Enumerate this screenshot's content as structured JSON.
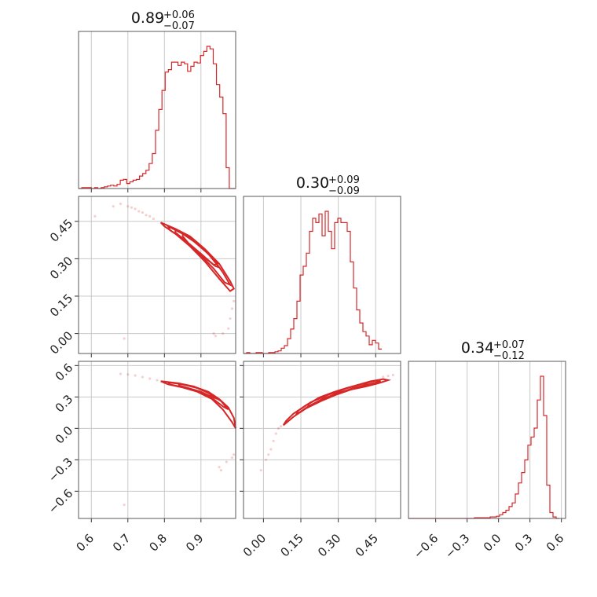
{
  "chart_data": {
    "type": "corner",
    "color": "#d62728",
    "params": [
      {
        "id": "p0",
        "title": {
          "median": "0.89",
          "plus": "+0.06",
          "minus": "−0.07"
        },
        "range": [
          0.565,
          0.995
        ],
        "ticks": [
          0.6,
          0.7,
          0.8,
          0.9
        ],
        "tick_labels": [
          "0.6",
          "0.7",
          "0.8",
          "0.9"
        ],
        "hist": {
          "edges_start": 0.565,
          "bin_width": 0.00878,
          "counts": [
            0,
            1,
            1,
            1,
            0,
            1,
            0,
            1,
            2,
            3,
            4,
            3,
            5,
            10,
            11,
            6,
            8,
            10,
            11,
            15,
            18,
            22,
            30,
            42,
            70,
            95,
            118,
            140,
            143,
            152,
            152,
            148,
            152,
            150,
            141,
            147,
            152,
            151,
            160,
            165,
            171,
            168,
            150,
            125,
            110,
            90,
            25,
            0,
            0
          ]
        }
      },
      {
        "id": "p1",
        "title": {
          "median": "0.30",
          "plus": "+0.09",
          "minus": "−0.09"
        },
        "range": [
          -0.08,
          0.55
        ],
        "ticks": [
          0.0,
          0.15,
          0.3,
          0.45
        ],
        "tick_labels": [
          "0.00",
          "0.15",
          "0.30",
          "0.45"
        ],
        "hist": {
          "edges_start": -0.08,
          "bin_width": 0.0126,
          "counts": [
            0,
            1,
            0,
            0,
            1,
            1,
            0,
            0,
            1,
            1,
            2,
            3,
            6,
            9,
            17,
            28,
            40,
            60,
            90,
            100,
            115,
            140,
            155,
            150,
            160,
            135,
            163,
            140,
            120,
            150,
            155,
            150,
            150,
            140,
            105,
            75,
            50,
            35,
            25,
            20,
            10,
            15,
            12,
            5
          ]
        }
      },
      {
        "id": "p2",
        "title": {
          "median": "0.34",
          "plus": "+0.07",
          "minus": "−0.12"
        },
        "range": [
          -0.86,
          0.64
        ],
        "ticks": [
          -0.6,
          -0.3,
          0.0,
          0.3,
          0.6
        ],
        "tick_labels": [
          "−0.6",
          "−0.3",
          "0.0",
          "0.3",
          "0.6"
        ],
        "hist": {
          "edges_start": -0.86,
          "bin_width": 0.03,
          "counts": [
            0,
            0,
            0,
            0,
            0,
            0,
            0,
            0,
            0,
            0,
            0,
            0,
            0,
            0,
            0,
            0,
            0,
            0,
            0,
            0,
            0,
            1,
            1,
            1,
            1,
            1,
            2,
            2,
            3,
            5,
            8,
            11,
            16,
            21,
            33,
            48,
            62,
            79,
            99,
            110,
            122,
            160,
            192,
            139,
            45,
            8,
            2,
            0
          ]
        }
      }
    ],
    "pairs": [
      {
        "x": "p0",
        "y": "p1",
        "contours": [
          [
            [
              0.79,
              0.445
            ],
            [
              0.83,
              0.42
            ],
            [
              0.87,
              0.39
            ],
            [
              0.91,
              0.34
            ],
            [
              0.95,
              0.28
            ],
            [
              0.98,
              0.21
            ],
            [
              0.99,
              0.18
            ],
            [
              0.98,
              0.17
            ],
            [
              0.95,
              0.22
            ],
            [
              0.91,
              0.29
            ],
            [
              0.87,
              0.35
            ],
            [
              0.83,
              0.4
            ],
            [
              0.8,
              0.43
            ],
            [
              0.79,
              0.445
            ]
          ],
          [
            [
              0.81,
              0.43
            ],
            [
              0.85,
              0.4
            ],
            [
              0.89,
              0.36
            ],
            [
              0.93,
              0.305
            ],
            [
              0.96,
              0.245
            ],
            [
              0.98,
              0.195
            ],
            [
              0.965,
              0.205
            ],
            [
              0.935,
              0.26
            ],
            [
              0.895,
              0.32
            ],
            [
              0.855,
              0.375
            ],
            [
              0.815,
              0.415
            ],
            [
              0.81,
              0.43
            ]
          ],
          [
            [
              0.83,
              0.415
            ],
            [
              0.87,
              0.385
            ],
            [
              0.91,
              0.335
            ],
            [
              0.945,
              0.28
            ],
            [
              0.935,
              0.275
            ],
            [
              0.9,
              0.32
            ],
            [
              0.86,
              0.37
            ],
            [
              0.83,
              0.405
            ],
            [
              0.83,
              0.415
            ]
          ],
          [
            [
              0.85,
              0.4
            ],
            [
              0.88,
              0.37
            ],
            [
              0.92,
              0.32
            ],
            [
              0.95,
              0.265
            ],
            [
              0.94,
              0.27
            ],
            [
              0.905,
              0.31
            ],
            [
              0.87,
              0.355
            ],
            [
              0.85,
              0.39
            ],
            [
              0.85,
              0.4
            ]
          ]
        ],
        "points": [
          [
            0.68,
            0.52
          ],
          [
            0.7,
            0.51
          ],
          [
            0.71,
            0.505
          ],
          [
            0.72,
            0.5
          ],
          [
            0.73,
            0.49
          ],
          [
            0.74,
            0.485
          ],
          [
            0.75,
            0.475
          ],
          [
            0.76,
            0.47
          ],
          [
            0.77,
            0.46
          ],
          [
            0.61,
            0.47
          ],
          [
            0.66,
            0.51
          ],
          [
            0.99,
            0.13
          ],
          [
            0.985,
            0.1
          ],
          [
            0.98,
            0.06
          ],
          [
            0.975,
            0.02
          ],
          [
            0.96,
            0.0
          ],
          [
            0.94,
            -0.01
          ],
          [
            0.69,
            -0.02
          ],
          [
            0.935,
            0.0
          ]
        ]
      },
      {
        "x": "p0",
        "y": "p2",
        "contours": [
          [
            [
              0.79,
              0.45
            ],
            [
              0.84,
              0.43
            ],
            [
              0.88,
              0.4
            ],
            [
              0.92,
              0.35
            ],
            [
              0.95,
              0.28
            ],
            [
              0.975,
              0.2
            ],
            [
              0.99,
              0.1
            ],
            [
              0.995,
              0.0
            ],
            [
              0.985,
              0.06
            ],
            [
              0.96,
              0.18
            ],
            [
              0.93,
              0.28
            ],
            [
              0.89,
              0.35
            ],
            [
              0.85,
              0.39
            ],
            [
              0.81,
              0.42
            ],
            [
              0.79,
              0.45
            ]
          ],
          [
            [
              0.81,
              0.44
            ],
            [
              0.85,
              0.42
            ],
            [
              0.89,
              0.385
            ],
            [
              0.925,
              0.33
            ],
            [
              0.955,
              0.26
            ],
            [
              0.975,
              0.18
            ],
            [
              0.96,
              0.21
            ],
            [
              0.93,
              0.29
            ],
            [
              0.895,
              0.35
            ],
            [
              0.855,
              0.39
            ],
            [
              0.815,
              0.42
            ],
            [
              0.81,
              0.44
            ]
          ],
          [
            [
              0.84,
              0.425
            ],
            [
              0.88,
              0.4
            ],
            [
              0.915,
              0.35
            ],
            [
              0.945,
              0.28
            ],
            [
              0.93,
              0.3
            ],
            [
              0.9,
              0.35
            ],
            [
              0.86,
              0.39
            ],
            [
              0.84,
              0.41
            ],
            [
              0.84,
              0.425
            ]
          ]
        ],
        "points": [
          [
            0.68,
            0.52
          ],
          [
            0.7,
            0.515
          ],
          [
            0.72,
            0.505
          ],
          [
            0.74,
            0.49
          ],
          [
            0.76,
            0.475
          ],
          [
            0.78,
            0.46
          ],
          [
            0.69,
            -0.73
          ],
          [
            0.95,
            -0.37
          ],
          [
            0.97,
            -0.32
          ],
          [
            0.985,
            -0.28
          ],
          [
            0.99,
            -0.25
          ],
          [
            0.955,
            -0.4
          ]
        ]
      },
      {
        "x": "p1",
        "y": "p2",
        "contours": [
          [
            [
              0.08,
              0.03
            ],
            [
              0.12,
              0.11
            ],
            [
              0.17,
              0.19
            ],
            [
              0.23,
              0.26
            ],
            [
              0.29,
              0.32
            ],
            [
              0.35,
              0.37
            ],
            [
              0.41,
              0.4
            ],
            [
              0.46,
              0.43
            ],
            [
              0.5,
              0.46
            ],
            [
              0.48,
              0.47
            ],
            [
              0.43,
              0.45
            ],
            [
              0.37,
              0.41
            ],
            [
              0.3,
              0.36
            ],
            [
              0.23,
              0.3
            ],
            [
              0.17,
              0.22
            ],
            [
              0.12,
              0.14
            ],
            [
              0.09,
              0.07
            ],
            [
              0.08,
              0.03
            ]
          ],
          [
            [
              0.13,
              0.13
            ],
            [
              0.18,
              0.21
            ],
            [
              0.24,
              0.28
            ],
            [
              0.3,
              0.34
            ],
            [
              0.36,
              0.38
            ],
            [
              0.42,
              0.42
            ],
            [
              0.47,
              0.45
            ],
            [
              0.45,
              0.455
            ],
            [
              0.39,
              0.42
            ],
            [
              0.33,
              0.38
            ],
            [
              0.26,
              0.32
            ],
            [
              0.19,
              0.25
            ],
            [
              0.14,
              0.17
            ],
            [
              0.13,
              0.13
            ]
          ],
          [
            [
              0.18,
              0.21
            ],
            [
              0.24,
              0.285
            ],
            [
              0.3,
              0.335
            ],
            [
              0.36,
              0.385
            ],
            [
              0.42,
              0.42
            ],
            [
              0.4,
              0.425
            ],
            [
              0.34,
              0.39
            ],
            [
              0.28,
              0.345
            ],
            [
              0.22,
              0.29
            ],
            [
              0.18,
              0.23
            ],
            [
              0.18,
              0.21
            ]
          ]
        ],
        "points": [
          [
            -0.01,
            -0.4
          ],
          [
            0.01,
            -0.3
          ],
          [
            0.03,
            -0.2
          ],
          [
            0.04,
            -0.12
          ],
          [
            0.05,
            -0.05
          ],
          [
            0.06,
            0.0
          ],
          [
            0.07,
            0.02
          ],
          [
            0.5,
            0.5
          ],
          [
            0.52,
            0.51
          ],
          [
            0.48,
            0.49
          ],
          [
            0.02,
            -0.25
          ]
        ]
      }
    ]
  }
}
